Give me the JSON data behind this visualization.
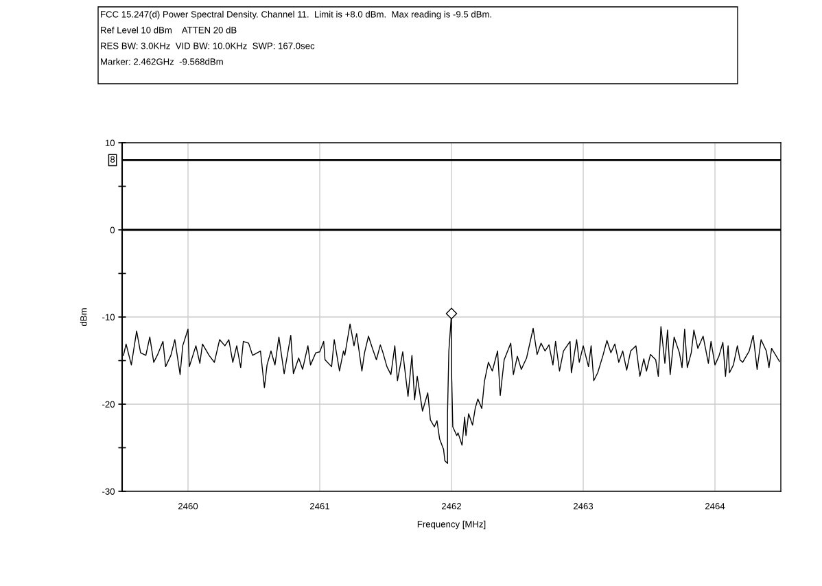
{
  "chart_data": {
    "type": "line",
    "title": "FCC 15.247(d) Power Spectral Density. Channel 11.  Limit is +8.0 dBm.  Max reading is -9.5 dBm.",
    "annotations": [
      "Ref Level 10 dBm    ATTEN 20 dB",
      "RES BW: 3.0KHz  VID BW: 10.0KHz  SWP: 167.0sec",
      "Marker: 2.462GHz  -9.568dBm"
    ],
    "xlabel": "Frequency [MHz]",
    "ylabel": "dBm",
    "xlim": [
      2459.5,
      2464.5
    ],
    "xticks": [
      2460,
      2461,
      2462,
      2463,
      2464
    ],
    "ylim": [
      -30,
      10
    ],
    "yticks": [
      -30,
      {
        "value": -25,
        "label": null
      },
      -20,
      {
        "value": -15,
        "label": null
      },
      -10,
      {
        "value": -5,
        "label": null
      },
      0,
      {
        "value": 5,
        "label": null
      },
      10
    ],
    "grid": true,
    "ref_lines": [
      {
        "axis": "y",
        "value": 8,
        "label": "8",
        "color": "#000000"
      },
      {
        "axis": "y",
        "value": 0,
        "color": "#000000"
      }
    ],
    "series": [
      {
        "color": "#000000",
        "marker": "none",
        "x": [
          2459.51,
          2459.53,
          2459.57,
          2459.61,
          2459.64,
          2459.68,
          2459.71,
          2459.74,
          2459.77,
          2459.81,
          2459.83,
          2459.87,
          2459.9,
          2459.94,
          2459.96,
          2460.0,
          2460.01,
          2460.06,
          2460.09,
          2460.11,
          2460.16,
          2460.2,
          2460.24,
          2460.28,
          2460.31,
          2460.34,
          2460.37,
          2460.4,
          2460.42,
          2460.46,
          2460.49,
          2460.55,
          2460.58,
          2460.6,
          2460.63,
          2460.66,
          2460.69,
          2460.73,
          2460.78,
          2460.8,
          2460.84,
          2460.87,
          2460.91,
          2460.93,
          2460.97,
          2461.0,
          2461.03,
          2461.04,
          2461.09,
          2461.11,
          2461.15,
          2461.18,
          2461.19,
          2461.23,
          2461.26,
          2461.28,
          2461.32,
          2461.34,
          2461.37,
          2461.4,
          2461.43,
          2461.46,
          2461.48,
          2461.51,
          2461.54,
          2461.57,
          2461.59,
          2461.63,
          2461.67,
          2461.7,
          2461.72,
          2461.74,
          2461.78,
          2461.82,
          2461.84,
          2461.87,
          2461.89,
          2461.91,
          2461.94,
          2461.95,
          2461.97,
          2461.97,
          2461.98,
          2462.0,
          2462.0,
          2462.01,
          2462.04,
          2462.05,
          2462.08,
          2462.1,
          2462.11,
          2462.13,
          2462.16,
          2462.18,
          2462.2,
          2462.23,
          2462.25,
          2462.28,
          2462.31,
          2462.35,
          2462.37,
          2462.4,
          2462.45,
          2462.47,
          2462.5,
          2462.53,
          2462.57,
          2462.62,
          2462.65,
          2462.68,
          2462.71,
          2462.74,
          2462.77,
          2462.79,
          2462.82,
          2462.85,
          2462.9,
          2462.91,
          2462.95,
          2462.97,
          2463.0,
          2463.04,
          2463.06,
          2463.08,
          2463.11,
          2463.15,
          2463.18,
          2463.21,
          2463.24,
          2463.27,
          2463.3,
          2463.33,
          2463.36,
          2463.4,
          2463.43,
          2463.46,
          2463.48,
          2463.51,
          2463.55,
          2463.57,
          2463.59,
          2463.62,
          2463.64,
          2463.66,
          2463.69,
          2463.73,
          2463.75,
          2463.77,
          2463.79,
          2463.82,
          2463.84,
          2463.87,
          2463.91,
          2463.95,
          2463.97,
          2464.0,
          2464.03,
          2464.06,
          2464.08,
          2464.1,
          2464.11,
          2464.14,
          2464.17,
          2464.19,
          2464.21,
          2464.26,
          2464.29,
          2464.32,
          2464.35,
          2464.39,
          2464.41,
          2464.43,
          2464.49
        ],
        "values": [
          -14.4,
          -13.1,
          -15.5,
          -11.6,
          -14.1,
          -14.4,
          -12.3,
          -15.2,
          -14.3,
          -12.8,
          -15.7,
          -14.4,
          -12.6,
          -16.6,
          -13.3,
          -11.4,
          -15.7,
          -13.3,
          -15.3,
          -13.1,
          -14.4,
          -15.2,
          -12.6,
          -13.3,
          -12.6,
          -15.2,
          -13.3,
          -15.8,
          -12.8,
          -13.0,
          -14.4,
          -13.9,
          -18.1,
          -15.5,
          -13.9,
          -15.5,
          -12.3,
          -16.5,
          -12.1,
          -16.5,
          -14.7,
          -16.0,
          -13.3,
          -15.5,
          -14.1,
          -14.0,
          -12.8,
          -14.9,
          -15.7,
          -12.6,
          -16.2,
          -13.9,
          -14.4,
          -10.8,
          -13.3,
          -11.9,
          -16.2,
          -14.1,
          -12.2,
          -13.6,
          -14.9,
          -13.2,
          -14.1,
          -15.7,
          -16.6,
          -13.3,
          -17.3,
          -14.0,
          -19.1,
          -14.4,
          -19.5,
          -16.8,
          -20.8,
          -18.7,
          -21.8,
          -22.6,
          -21.9,
          -24.0,
          -25.2,
          -26.5,
          -26.8,
          -21.0,
          -13.9,
          -9.6,
          -15.7,
          -22.6,
          -23.6,
          -23.3,
          -24.7,
          -21.5,
          -23.6,
          -21.1,
          -22.4,
          -20.5,
          -19.4,
          -20.5,
          -17.4,
          -15.2,
          -16.2,
          -13.9,
          -19.0,
          -14.9,
          -13.0,
          -16.6,
          -14.5,
          -16.0,
          -14.7,
          -11.3,
          -14.3,
          -13.0,
          -13.9,
          -13.2,
          -15.5,
          -12.8,
          -16.2,
          -13.9,
          -12.8,
          -16.4,
          -12.6,
          -15.2,
          -13.3,
          -15.7,
          -13.3,
          -17.3,
          -16.4,
          -14.4,
          -12.7,
          -14.1,
          -13.1,
          -15.2,
          -13.9,
          -16.1,
          -13.9,
          -13.3,
          -16.8,
          -14.8,
          -16.2,
          -14.3,
          -14.9,
          -16.8,
          -11.1,
          -15.3,
          -11.5,
          -16.6,
          -12.3,
          -14.1,
          -15.8,
          -11.4,
          -15.8,
          -14.1,
          -11.5,
          -13.6,
          -12.2,
          -15.3,
          -12.8,
          -15.5,
          -14.5,
          -12.9,
          -16.8,
          -13.3,
          -16.4,
          -15.5,
          -13.3,
          -14.9,
          -15.2,
          -13.9,
          -12.1,
          -16.0,
          -12.6,
          -13.9,
          -15.8,
          -13.6,
          -15.1
        ]
      },
      {
        "color": "#000000",
        "type": "scatter",
        "marker": "diamond",
        "x": [
          2462
        ],
        "values": [
          -9.6
        ]
      }
    ]
  }
}
